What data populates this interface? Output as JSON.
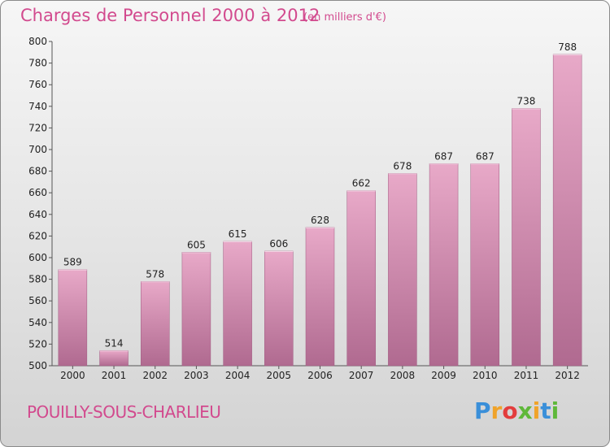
{
  "chart_data": {
    "type": "bar",
    "title": "Charges de Personnel 2000 à 2012",
    "subtitle": "(en milliers d'€)",
    "categories": [
      "2000",
      "2001",
      "2002",
      "2003",
      "2004",
      "2005",
      "2006",
      "2007",
      "2008",
      "2009",
      "2010",
      "2011",
      "2012"
    ],
    "values": [
      589,
      514,
      578,
      605,
      615,
      606,
      628,
      662,
      678,
      687,
      687,
      738,
      788
    ],
    "ylim": [
      500,
      800
    ],
    "yticks": [
      500,
      520,
      540,
      560,
      580,
      600,
      620,
      640,
      660,
      680,
      700,
      720,
      740,
      760,
      780,
      800
    ],
    "grid": false,
    "bar_color": "#c9789f"
  },
  "footer": {
    "place": "POUILLY-SOUS-CHARLIEU",
    "logo": "Proxiti"
  }
}
